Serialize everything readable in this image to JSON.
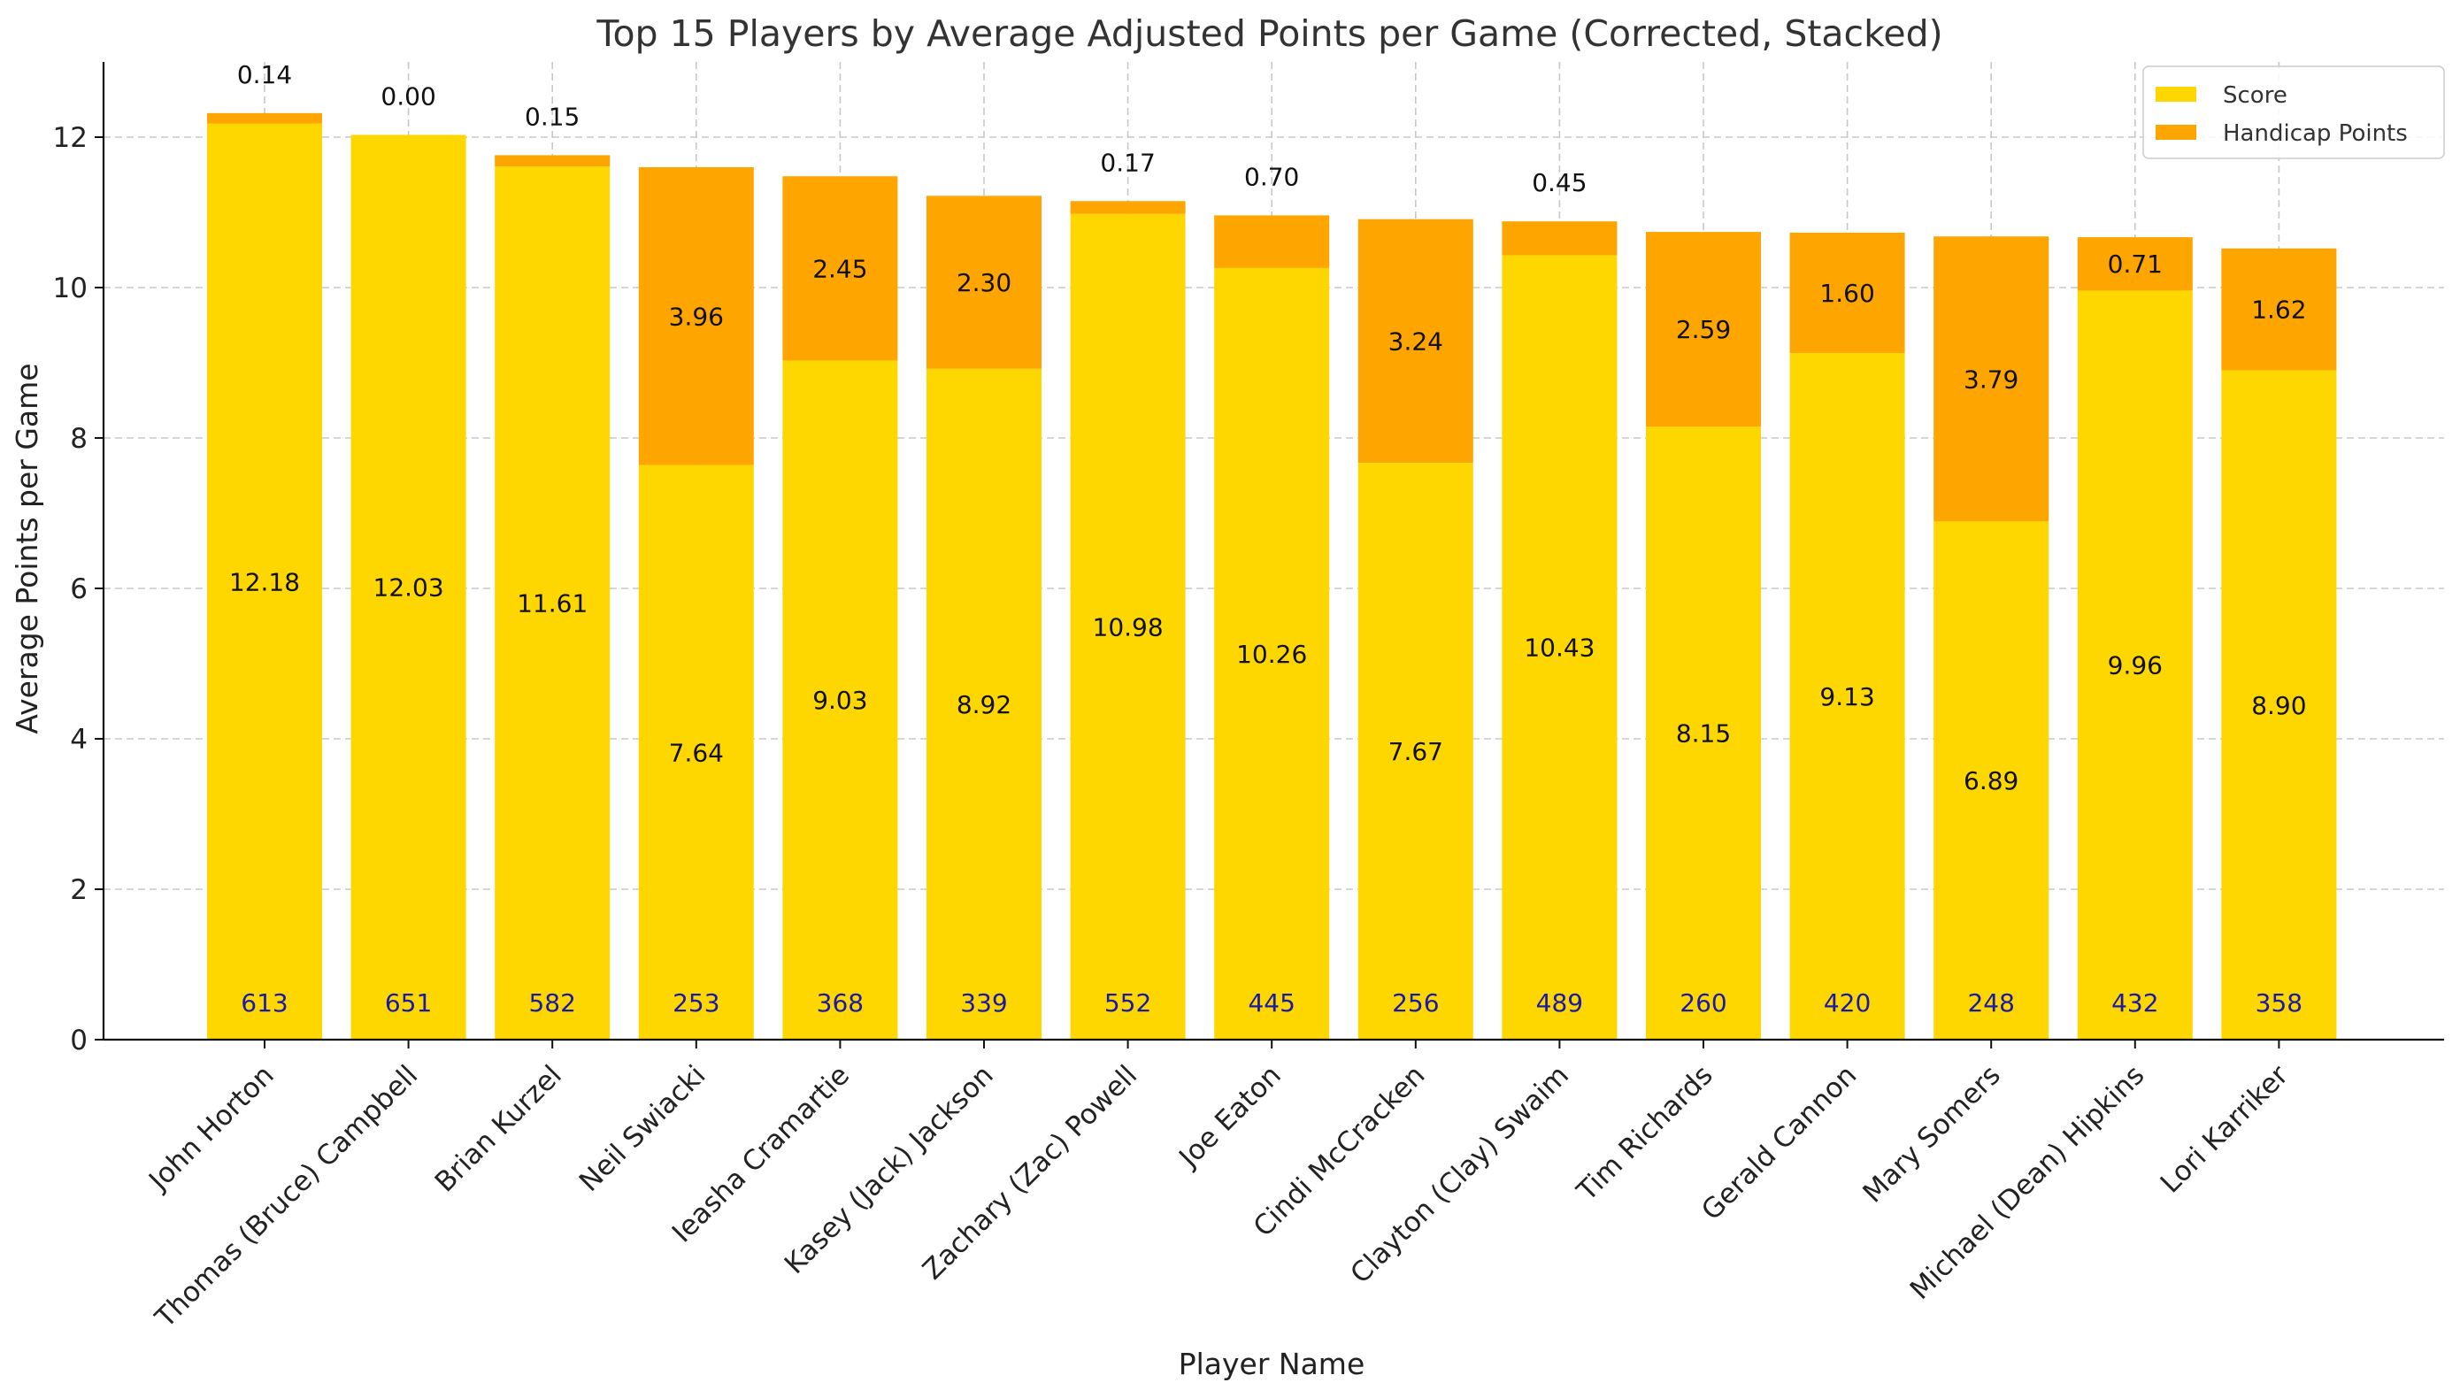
{
  "chart_data": {
    "type": "bar",
    "stacked": true,
    "title": "Top 15 Players by Average Adjusted Points per Game (Corrected, Stacked)",
    "xlabel": "Player Name",
    "ylabel": "Average Points per Game",
    "ylim": [
      0,
      13
    ],
    "yticks": [
      0,
      2,
      4,
      6,
      8,
      10,
      12
    ],
    "ytick_labels": [
      "0",
      "2",
      "4",
      "6",
      "8",
      "10",
      "12"
    ],
    "grid": true,
    "legend_position": "top-right",
    "categories": [
      "John Horton",
      "Thomas (Bruce) Campbell",
      "Brian Kurzel",
      "Neil Swiacki",
      "Ieasha Cramartie",
      "Kasey (Jack) Jackson",
      "Zachary (Zac) Powell",
      "Joe Eaton",
      "Cindi McCracken",
      "Clayton (Clay) Swaim",
      "Tim Richards",
      "Gerald Cannon",
      "Mary Somers",
      "Michael (Dean) Hipkins",
      "Lori Karriker"
    ],
    "series": [
      {
        "name": "Score",
        "color": "#FFD700",
        "values": [
          12.18,
          12.03,
          11.61,
          7.64,
          9.03,
          8.92,
          10.98,
          10.26,
          7.67,
          10.43,
          8.15,
          9.13,
          6.89,
          9.96,
          8.9
        ],
        "labels": [
          "12.18",
          "12.03",
          "11.61",
          "7.64",
          "9.03",
          "8.92",
          "10.98",
          "10.26",
          "7.67",
          "10.43",
          "8.15",
          "9.13",
          "6.89",
          "9.96",
          "8.90"
        ]
      },
      {
        "name": "Handicap Points",
        "color": "#FFA500",
        "values": [
          0.14,
          0.0,
          0.15,
          3.96,
          2.45,
          2.3,
          0.17,
          0.7,
          3.24,
          0.45,
          2.59,
          1.6,
          3.79,
          0.71,
          1.62
        ],
        "labels": [
          "0.14",
          "0.00",
          "0.15",
          "3.96",
          "2.45",
          "2.30",
          "0.17",
          "0.70",
          "3.24",
          "0.45",
          "2.59",
          "1.60",
          "3.79",
          "0.71",
          "1.62"
        ]
      }
    ],
    "bottom_annotations": [
      "613",
      "651",
      "582",
      "253",
      "368",
      "339",
      "552",
      "445",
      "256",
      "489",
      "260",
      "420",
      "248",
      "432",
      "358"
    ],
    "bottom_annotation_color": "#1a1aa8"
  }
}
